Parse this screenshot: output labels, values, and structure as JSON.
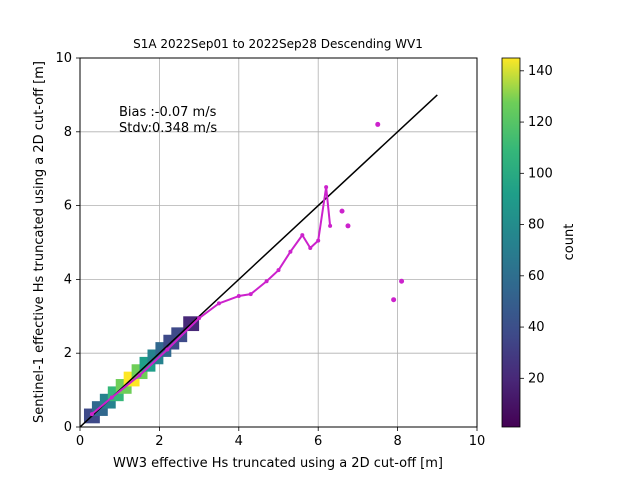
{
  "chart_data": {
    "type": "heatmap",
    "title": "S1A 2022Sep01 to 2022Sep28 Descending WV1",
    "xlabel": "WW3 effective Hs truncated using a 2D cut-off [m]",
    "ylabel": "Sentinel-1 effective Hs truncated using a 2D cut-off [m]",
    "xlim": [
      0,
      10
    ],
    "ylim": [
      0,
      10
    ],
    "xticks": [
      "0",
      "2",
      "4",
      "6",
      "8",
      "10"
    ],
    "yticks": [
      "0",
      "2",
      "4",
      "6",
      "8",
      "10"
    ],
    "grid": true,
    "annotations": {
      "bias": "Bias :-0.07 m/s",
      "stdv": "Stdv:0.348 m/s"
    },
    "colorbar": {
      "label": "count",
      "min": 1,
      "max": 145,
      "ticks": [
        "20",
        "40",
        "60",
        "80",
        "100",
        "120",
        "140"
      ],
      "colormap": "viridis"
    },
    "density_bins": [
      {
        "x": 0.3,
        "y": 0.3,
        "count": 40
      },
      {
        "x": 0.5,
        "y": 0.5,
        "count": 55
      },
      {
        "x": 0.7,
        "y": 0.7,
        "count": 80
      },
      {
        "x": 0.9,
        "y": 0.9,
        "count": 100
      },
      {
        "x": 1.1,
        "y": 1.1,
        "count": 130
      },
      {
        "x": 1.3,
        "y": 1.3,
        "count": 140
      },
      {
        "x": 1.5,
        "y": 1.5,
        "count": 120
      },
      {
        "x": 1.7,
        "y": 1.7,
        "count": 95
      },
      {
        "x": 1.9,
        "y": 1.9,
        "count": 75
      },
      {
        "x": 2.1,
        "y": 2.1,
        "count": 55
      },
      {
        "x": 2.3,
        "y": 2.3,
        "count": 40
      },
      {
        "x": 2.5,
        "y": 2.5,
        "count": 30
      },
      {
        "x": 2.8,
        "y": 2.8,
        "count": 20
      }
    ],
    "lines": [
      {
        "name": "identity",
        "color": "#000000",
        "x": [
          0,
          9
        ],
        "y": [
          0,
          9
        ]
      },
      {
        "name": "binned mean",
        "color": "#cc22cc",
        "x": [
          0.3,
          0.8,
          1.5,
          2.2,
          3.0,
          3.5,
          4.0,
          4.3,
          4.7,
          5.0,
          5.3,
          5.6,
          5.8,
          6.0,
          6.2,
          6.3
        ],
        "y": [
          0.35,
          0.8,
          1.4,
          2.1,
          2.95,
          3.35,
          3.55,
          3.6,
          3.95,
          4.25,
          4.75,
          5.2,
          4.85,
          5.05,
          6.5,
          5.45
        ]
      }
    ],
    "outlier_points": [
      {
        "x": 7.5,
        "y": 8.2
      },
      {
        "x": 6.6,
        "y": 5.85
      },
      {
        "x": 6.75,
        "y": 5.45
      },
      {
        "x": 8.1,
        "y": 3.95
      },
      {
        "x": 7.9,
        "y": 3.45
      }
    ],
    "colors": {
      "identity_line": "#000000",
      "mean_line": "#cc22cc",
      "grid": "#b0b0b0"
    }
  }
}
